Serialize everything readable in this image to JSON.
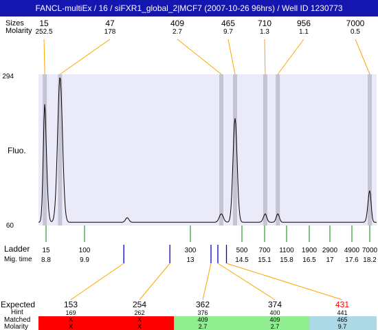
{
  "window_title": "FANCL-multiEx / 16 / siFXR1_global_2|MCF7 (2007-10-26 96hrs) / Well ID 1230773",
  "chart_data": {
    "type": "line",
    "header_labels": {
      "size": "Sizes",
      "molarity": "Molarity"
    },
    "y_axis_label": "Fluo.",
    "ylim": [
      60,
      294
    ],
    "ytick_labels": [
      "294",
      "60"
    ],
    "peaks": [
      {
        "size": "15",
        "molarity": "252.5",
        "time": 8.75
      },
      {
        "size": "47",
        "molarity": "178",
        "time": 9.2
      },
      {
        "size": "409",
        "molarity": "2.7",
        "time": 13.9
      },
      {
        "size": "465",
        "molarity": "9.7",
        "time": 14.3
      },
      {
        "size": "710",
        "molarity": "1.3",
        "time": 15.12
      },
      {
        "size": "956",
        "molarity": "1.1",
        "time": 15.52
      },
      {
        "size": "7000",
        "molarity": "0.5",
        "time": 18.2
      }
    ],
    "trace": {
      "baseline": 65,
      "peaks": [
        {
          "time": 8.75,
          "height": 248,
          "width": 0.06
        },
        {
          "time": 9.2,
          "height": 290,
          "width": 0.07
        },
        {
          "time": 11.15,
          "height": 72,
          "width": 0.05
        },
        {
          "time": 13.9,
          "height": 78,
          "width": 0.06
        },
        {
          "time": 14.3,
          "height": 226,
          "width": 0.06
        },
        {
          "time": 15.12,
          "height": 78,
          "width": 0.05
        },
        {
          "time": 15.52,
          "height": 78,
          "width": 0.05
        },
        {
          "time": 18.2,
          "height": 114,
          "width": 0.06
        }
      ]
    },
    "ladder_label": "Ladder",
    "mig_time_label": "Mig. time",
    "ladder": [
      {
        "size": "15",
        "time": "8.8"
      },
      {
        "size": "100",
        "time": "9.9"
      },
      {
        "size": "300",
        "time": "13"
      },
      {
        "size": "500",
        "time": "14.5"
      },
      {
        "size": "700",
        "time": "15.1"
      },
      {
        "size": "1100",
        "time": "15.8"
      },
      {
        "size": "1900",
        "time": "16.5"
      },
      {
        "size": "2900",
        "time": "17"
      },
      {
        "size": "4900",
        "time": "17.6"
      },
      {
        "size": "7000",
        "time": "18.2"
      }
    ],
    "expected_markers": [
      11.05,
      12.4,
      13.6,
      13.8,
      14.05
    ],
    "bottom_labels": {
      "expected": "Expected",
      "hint": "Hint",
      "matched": "Matched",
      "molarity": "Molarity"
    },
    "expected": [
      {
        "expected": "153",
        "hint": "169",
        "matched": "X",
        "molarity": "X",
        "color": "#ff0000",
        "expected_color": "#000000",
        "marker": 0
      },
      {
        "expected": "254",
        "hint": "262",
        "matched": "X",
        "molarity": "X",
        "color": "#ff0000",
        "expected_color": "#000000",
        "marker": 1
      },
      {
        "expected": "362",
        "hint": "376",
        "matched": "409",
        "molarity": "2.7",
        "color": "#90ee90",
        "expected_color": "#000000",
        "marker": 2
      },
      {
        "expected": "374",
        "hint": "400",
        "matched": "409",
        "molarity": "2.7",
        "color": "#90ee90",
        "expected_color": "#000000",
        "marker": 3
      },
      {
        "expected": "431",
        "hint": "441",
        "matched": "465",
        "molarity": "9.7",
        "color": "#add8e6",
        "expected_color": "#ff0000",
        "marker": 4
      }
    ],
    "colors": {
      "plot_bg": "#eaeaf8",
      "peak_band": "#c4c4d4",
      "connector": "#ffa500",
      "tick": "#008000",
      "marker": "#0000cd",
      "title_bg": "#1515b0"
    }
  }
}
